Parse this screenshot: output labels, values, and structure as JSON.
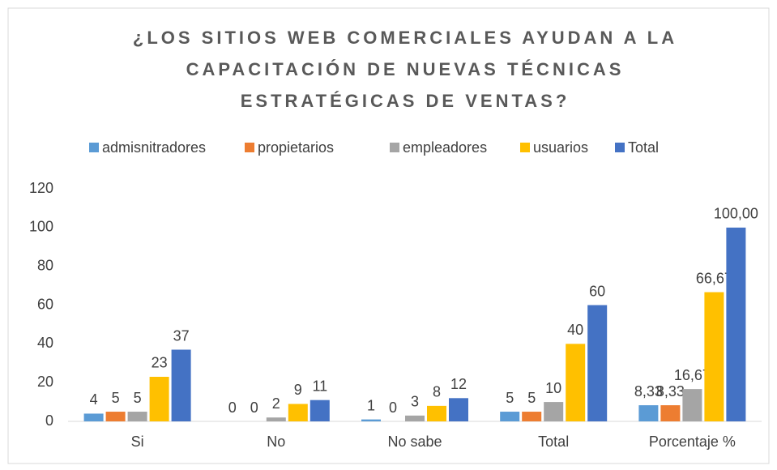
{
  "chart_data": {
    "type": "bar",
    "title": [
      "¿LOS SITIOS WEB COMERCIALES AYUDAN A LA",
      "CAPACITACIÓN DE NUEVAS TÉCNICAS",
      "ESTRATÉGICAS DE VENTAS?"
    ],
    "categories": [
      "Si",
      "No",
      "No sabe",
      "Total",
      "Porcentaje %"
    ],
    "series": [
      {
        "name": "admisnitradores",
        "color": "#5b9bd5",
        "values": [
          4,
          0,
          1,
          5,
          8.33
        ],
        "value_labels": [
          "4",
          "0",
          "1",
          "5",
          "8,33"
        ]
      },
      {
        "name": "propietarios",
        "color": "#ed7d31",
        "values": [
          5,
          0,
          0,
          5,
          8.33
        ],
        "value_labels": [
          "5",
          "0",
          "0",
          "5",
          "8,33"
        ]
      },
      {
        "name": "empleadores",
        "color": "#a5a5a5",
        "values": [
          5,
          2,
          3,
          10,
          16.67
        ],
        "value_labels": [
          "5",
          "2",
          "3",
          "10",
          "16,67"
        ]
      },
      {
        "name": "usuarios",
        "color": "#ffc000",
        "values": [
          23,
          9,
          8,
          40,
          66.67
        ],
        "value_labels": [
          "23",
          "9",
          "8",
          "40",
          "66,67"
        ]
      },
      {
        "name": "Total",
        "color": "#4472c4",
        "values": [
          37,
          11,
          12,
          60,
          100
        ],
        "value_labels": [
          "37",
          "11",
          "12",
          "60",
          "100,00"
        ]
      }
    ],
    "ylim": [
      0,
      120
    ],
    "yticks": [
      0,
      20,
      40,
      60,
      80,
      100,
      120
    ],
    "grid": false,
    "legend": "top"
  }
}
